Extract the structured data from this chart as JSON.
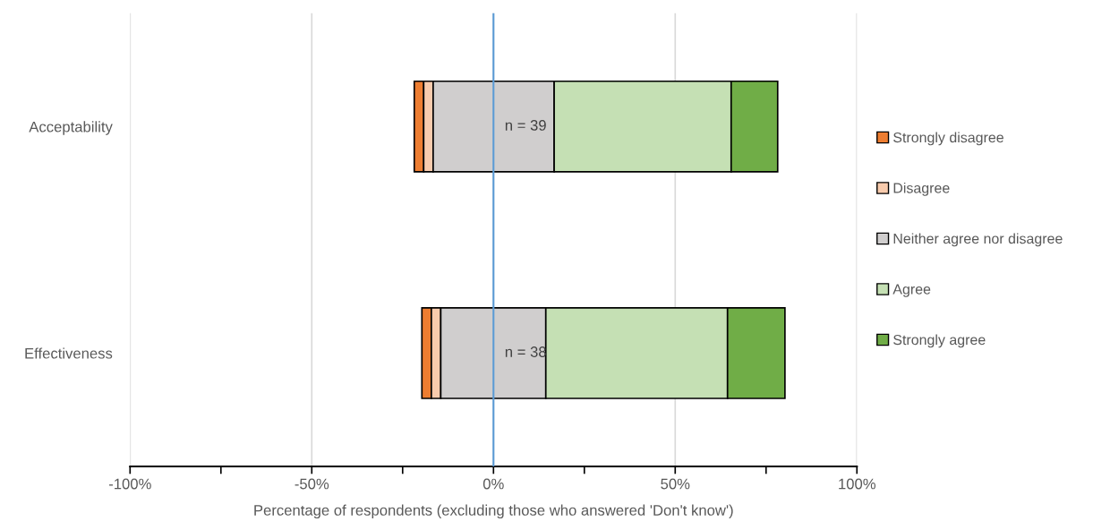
{
  "chart_data": {
    "type": "bar",
    "orientation": "horizontal",
    "categories": [
      "Acceptability",
      "Effectiveness"
    ],
    "series": [
      {
        "name": "Strongly disagree",
        "color": "#ed7d31",
        "base": [
          -21.8,
          -19.7
        ],
        "values": [
          2.6,
          2.6
        ]
      },
      {
        "name": "Disagree",
        "color": "#f8cbad",
        "base": [
          -19.2,
          -17.1
        ],
        "values": [
          2.6,
          2.6
        ]
      },
      {
        "name": "Neither agree nor disagree",
        "color": "#d0cece",
        "base": [
          -16.6,
          -14.5
        ],
        "values": [
          33.3,
          28.9
        ]
      },
      {
        "name": "Agree",
        "color": "#c5e0b4",
        "base": [
          16.7,
          14.4
        ],
        "values": [
          48.7,
          50.0
        ]
      },
      {
        "name": "Strongly agree",
        "color": "#70ad47",
        "base": [
          65.4,
          64.4
        ],
        "values": [
          12.8,
          15.8
        ]
      }
    ],
    "xlim": [
      -100,
      100
    ],
    "xticks": [
      {
        "value": -100,
        "label": "-100%"
      },
      {
        "value": -75,
        "label": null
      },
      {
        "value": -50,
        "label": "-50%"
      },
      {
        "value": -25,
        "label": null
      },
      {
        "value": 0,
        "label": "0%"
      },
      {
        "value": 25,
        "label": null
      },
      {
        "value": 50,
        "label": "50%"
      },
      {
        "value": 75,
        "label": null
      },
      {
        "value": 100,
        "label": "100%"
      }
    ],
    "xlabel": "Percentage of respondents (excluding those who answered 'Don't know')",
    "ref_lines": [
      {
        "axis": "x",
        "value": 0,
        "color": "#5b9bd5"
      }
    ],
    "annotations": [
      "n = 39",
      "n = 38"
    ],
    "grid": "x",
    "legend": "right"
  }
}
